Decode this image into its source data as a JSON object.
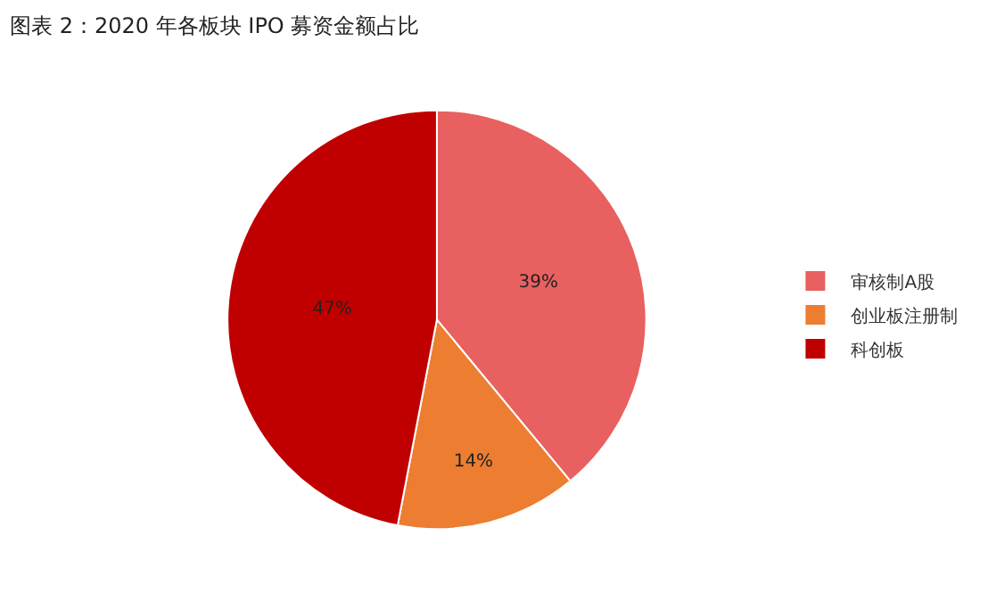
{
  "chart_data": {
    "type": "pie",
    "title": "图表 2：2020 年各板块 IPO 募资金额占比",
    "categories": [
      "审核制A股",
      "创业板注册制",
      "科创板"
    ],
    "values": [
      39,
      14,
      47
    ],
    "value_labels": [
      "39%",
      "14%",
      "47%"
    ],
    "colors": [
      "#e8605f",
      "#ed7d31",
      "#c00000"
    ],
    "legend": "right"
  }
}
